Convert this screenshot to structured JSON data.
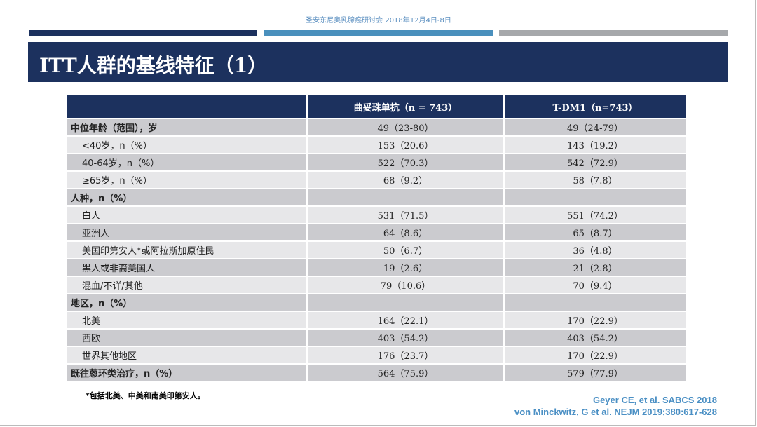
{
  "header": {
    "conference": "圣安东尼奥乳腺癌研讨会 2018年12月4日-8日",
    "title": "ITT人群的基线特征（1）",
    "bar_colors": [
      "#1c315e",
      "#4a90bd",
      "#a6a8ab"
    ]
  },
  "table": {
    "columns": [
      "",
      "曲妥珠单抗（n = 743）",
      "T-DM1（n=743）"
    ],
    "rows": [
      {
        "label": "中位年龄（范围），岁",
        "a": "49（23-80）",
        "b": "49（24-79）",
        "bold": true
      },
      {
        "label": "<40岁，n（%）",
        "a": "153（20.6）",
        "b": "143（19.2）"
      },
      {
        "label": "40-64岁，n（%）",
        "a": "522（70.3）",
        "b": "542（72.9）"
      },
      {
        "label": "≥65岁，n（%）",
        "a": "68（9.2）",
        "b": "58（7.8）"
      },
      {
        "label": "人种，n（%）",
        "a": "",
        "b": "",
        "bold": true
      },
      {
        "label": "白人",
        "a": "531（71.5）",
        "b": "551（74.2）"
      },
      {
        "label": "亚洲人",
        "a": "64（8.6）",
        "b": "65（8.7）"
      },
      {
        "label": "美国印第安人*或阿拉斯加原住民",
        "a": "50（6.7）",
        "b": "36（4.8）"
      },
      {
        "label": "黑人或非裔美国人",
        "a": "19（2.6）",
        "b": "21（2.8）"
      },
      {
        "label": "混血/不详/其他",
        "a": "79（10.6）",
        "b": "70（9.4）"
      },
      {
        "label": "地区，n（%）",
        "a": "",
        "b": "",
        "bold": true
      },
      {
        "label": "北美",
        "a": "164（22.1）",
        "b": "170（22.9）"
      },
      {
        "label": "西欧",
        "a": "403（54.2）",
        "b": "403（54.2）"
      },
      {
        "label": "世界其他地区",
        "a": "176（23.7）",
        "b": "170（22.9）"
      },
      {
        "label": "既往蒽环类治疗，n（%）",
        "a": "564（75.9）",
        "b": "579（77.9）",
        "bold": true
      }
    ]
  },
  "footnote": "*包括北美、中美和南美印第安人。",
  "citations": [
    "Geyer CE, et al.  SABCS 2018",
    "von Minckwitz, G et al. NEJM 2019;380:617-628"
  ]
}
